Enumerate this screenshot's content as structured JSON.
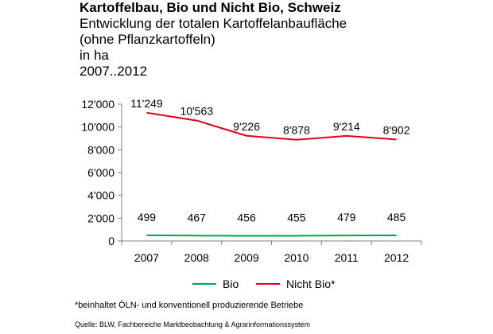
{
  "header": {
    "title": "Kartoffelbau, Bio und Nicht Bio, Schweiz",
    "subtitle_lines": [
      "Entwicklung der totalen Kartoffelanbaufläche",
      "(ohne Pflanzkartoffeln)",
      "in ha",
      "2007..2012"
    ]
  },
  "chart_data": {
    "type": "line",
    "title": "Kartoffelbau, Bio und Nicht Bio, Schweiz",
    "xlabel": "",
    "ylabel": "",
    "categories": [
      "2007",
      "2008",
      "2009",
      "2010",
      "2011",
      "2012"
    ],
    "ylim": [
      0,
      12000
    ],
    "yticks": [
      0,
      2000,
      4000,
      6000,
      8000,
      10000,
      12000
    ],
    "ytick_labels": [
      "0",
      "2'000",
      "4'000",
      "6'000",
      "8'000",
      "10'000",
      "12'000"
    ],
    "grid": false,
    "legend_position": "bottom",
    "series": [
      {
        "name": "Bio",
        "color": "#00a651",
        "values": [
          499,
          467,
          456,
          455,
          479,
          485
        ],
        "labels": [
          "499",
          "467",
          "456",
          "455",
          "479",
          "485"
        ]
      },
      {
        "name": "Nicht Bio*",
        "color": "#e3001b",
        "values": [
          11249,
          10563,
          9226,
          8878,
          9214,
          8902
        ],
        "labels": [
          "11'249",
          "10'563",
          "9'226",
          "8'878",
          "9'214",
          "8'902"
        ]
      }
    ]
  },
  "footnote": "*beinhaltet ÖLN- und konventionell produzierende Betriebe",
  "source": "Quelle: BLW, Fachbereiche Marktbeobachtung & Agrarinformationssystem"
}
